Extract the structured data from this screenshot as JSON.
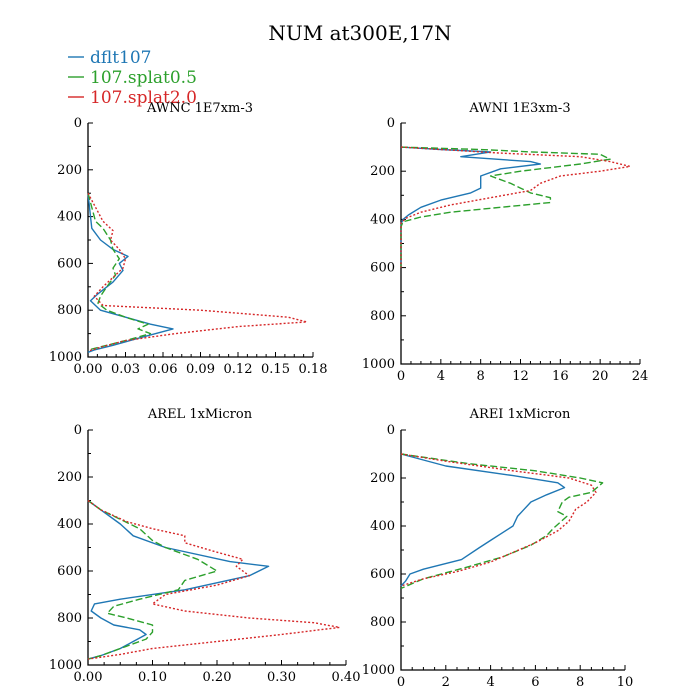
{
  "figure": {
    "title": "NUM at300E,17N"
  },
  "legend": [
    {
      "label": "dflt107",
      "color": "#1f77b4",
      "dash": "solid"
    },
    {
      "label": "107.splat0.5",
      "color": "#2ca02c",
      "dash": "dash"
    },
    {
      "label": "107.splat2.0",
      "color": "#d62728",
      "dash": "dot"
    }
  ],
  "chart_data": [
    {
      "type": "line",
      "title": "AWNC  1E7xm-3",
      "xlim": [
        0,
        0.18
      ],
      "ylim": [
        0,
        1000
      ],
      "y_inverted": true,
      "xticks": [
        "0.00",
        "0.03",
        "0.06",
        "0.09",
        "0.12",
        "0.15",
        "0.18"
      ],
      "xtick_values": [
        0,
        0.03,
        0.06,
        0.09,
        0.12,
        0.15,
        0.18
      ],
      "yticks": [
        "0",
        "200",
        "400",
        "600",
        "800",
        "1000"
      ],
      "ytick_values": [
        0,
        200,
        400,
        600,
        800,
        1000
      ],
      "series": [
        {
          "name": "dflt107",
          "points": [
            [
              0,
              300
            ],
            [
              0.002,
              400
            ],
            [
              0.003,
              450
            ],
            [
              0.01,
              500
            ],
            [
              0.02,
              540
            ],
            [
              0.032,
              570
            ],
            [
              0.025,
              600
            ],
            [
              0.028,
              630
            ],
            [
              0.02,
              680
            ],
            [
              0.008,
              730
            ],
            [
              0.002,
              760
            ],
            [
              0.01,
              800
            ],
            [
              0.03,
              830
            ],
            [
              0.05,
              860
            ],
            [
              0.068,
              880
            ],
            [
              0.04,
              920
            ],
            [
              0.02,
              950
            ],
            [
              0.005,
              970
            ],
            [
              0,
              980
            ]
          ]
        },
        {
          "name": "107.splat0.5",
          "points": [
            [
              0,
              300
            ],
            [
              0.004,
              380
            ],
            [
              0.006,
              420
            ],
            [
              0.012,
              450
            ],
            [
              0.018,
              500
            ],
            [
              0.02,
              540
            ],
            [
              0.025,
              580
            ],
            [
              0.02,
              620
            ],
            [
              0.022,
              650
            ],
            [
              0.015,
              700
            ],
            [
              0.01,
              740
            ],
            [
              0.008,
              770
            ],
            [
              0.015,
              800
            ],
            [
              0.03,
              830
            ],
            [
              0.048,
              860
            ],
            [
              0.04,
              880
            ],
            [
              0.05,
              900
            ],
            [
              0.03,
              930
            ],
            [
              0.015,
              950
            ],
            [
              0,
              970
            ]
          ]
        },
        {
          "name": "107.splat2.0",
          "points": [
            [
              0,
              300
            ],
            [
              0.008,
              380
            ],
            [
              0.012,
              420
            ],
            [
              0.02,
              460
            ],
            [
              0.018,
              500
            ],
            [
              0.025,
              540
            ],
            [
              0.03,
              580
            ],
            [
              0.028,
              620
            ],
            [
              0.02,
              660
            ],
            [
              0.012,
              700
            ],
            [
              0.005,
              740
            ],
            [
              0.012,
              780
            ],
            [
              0.09,
              800
            ],
            [
              0.16,
              830
            ],
            [
              0.175,
              850
            ],
            [
              0.12,
              870
            ],
            [
              0.07,
              900
            ],
            [
              0.03,
              930
            ],
            [
              0.012,
              955
            ],
            [
              0,
              975
            ]
          ]
        }
      ]
    },
    {
      "type": "line",
      "title": "AWNI  1E3xm-3",
      "xlim": [
        0,
        24
      ],
      "ylim": [
        0,
        1000
      ],
      "y_inverted": true,
      "xticks": [
        "0",
        "4",
        "8",
        "12",
        "16",
        "20",
        "24"
      ],
      "xtick_values": [
        0,
        4,
        8,
        12,
        16,
        20,
        24
      ],
      "yticks": [
        "0",
        "200",
        "400",
        "600",
        "800",
        "1000"
      ],
      "ytick_values": [
        0,
        200,
        400,
        600,
        800,
        1000
      ],
      "series": [
        {
          "name": "dflt107",
          "points": [
            [
              0,
              100
            ],
            [
              4,
              110
            ],
            [
              9,
              120
            ],
            [
              6,
              140
            ],
            [
              13,
              160
            ],
            [
              14,
              170
            ],
            [
              10,
              190
            ],
            [
              8,
              220
            ],
            [
              8,
              250
            ],
            [
              8,
              270
            ],
            [
              7,
              290
            ],
            [
              4,
              320
            ],
            [
              2,
              350
            ],
            [
              0.8,
              380
            ],
            [
              0.2,
              400
            ],
            [
              0,
              420
            ],
            [
              0,
              600
            ]
          ]
        },
        {
          "name": "107.splat0.5",
          "points": [
            [
              0,
              100
            ],
            [
              8,
              110
            ],
            [
              13,
              120
            ],
            [
              20,
              130
            ],
            [
              21,
              150
            ],
            [
              18,
              170
            ],
            [
              12,
              200
            ],
            [
              9,
              220
            ],
            [
              11,
              250
            ],
            [
              12,
              270
            ],
            [
              13,
              290
            ],
            [
              15,
              310
            ],
            [
              15,
              330
            ],
            [
              10,
              350
            ],
            [
              5,
              370
            ],
            [
              2,
              390
            ],
            [
              0.2,
              410
            ],
            [
              0,
              430
            ],
            [
              0,
              600
            ]
          ]
        },
        {
          "name": "107.splat2.0",
          "points": [
            [
              0,
              100
            ],
            [
              6,
              115
            ],
            [
              10,
              125
            ],
            [
              18,
              140
            ],
            [
              21,
              160
            ],
            [
              23,
              180
            ],
            [
              20,
              200
            ],
            [
              16,
              220
            ],
            [
              14,
              250
            ],
            [
              13,
              280
            ],
            [
              9,
              310
            ],
            [
              5,
              340
            ],
            [
              2,
              370
            ],
            [
              0.5,
              395
            ],
            [
              0,
              415
            ],
            [
              0,
              600
            ]
          ]
        }
      ]
    },
    {
      "type": "line",
      "title": "AREL  1xMicron",
      "xlim": [
        0,
        0.4
      ],
      "ylim": [
        0,
        1000
      ],
      "y_inverted": true,
      "xticks": [
        "0.00",
        "0.10",
        "0.20",
        "0.30",
        "0.40"
      ],
      "xtick_values": [
        0,
        0.1,
        0.2,
        0.3,
        0.4
      ],
      "yticks": [
        "0",
        "200",
        "400",
        "600",
        "800",
        "1000"
      ],
      "ytick_values": [
        0,
        200,
        400,
        600,
        800,
        1000
      ],
      "series": [
        {
          "name": "dflt107",
          "points": [
            [
              0,
              300
            ],
            [
              0.02,
              340
            ],
            [
              0.05,
              400
            ],
            [
              0.07,
              450
            ],
            [
              0.12,
              500
            ],
            [
              0.22,
              560
            ],
            [
              0.28,
              580
            ],
            [
              0.25,
              620
            ],
            [
              0.15,
              680
            ],
            [
              0.05,
              720
            ],
            [
              0.01,
              740
            ],
            [
              0.005,
              770
            ],
            [
              0.02,
              800
            ],
            [
              0.04,
              830
            ],
            [
              0.08,
              850
            ],
            [
              0.09,
              870
            ],
            [
              0.07,
              900
            ],
            [
              0.05,
              930
            ],
            [
              0.02,
              960
            ],
            [
              0,
              975
            ]
          ]
        },
        {
          "name": "107.splat0.5",
          "points": [
            [
              0,
              300
            ],
            [
              0.02,
              340
            ],
            [
              0.05,
              380
            ],
            [
              0.08,
              420
            ],
            [
              0.1,
              470
            ],
            [
              0.12,
              500
            ],
            [
              0.17,
              550
            ],
            [
              0.2,
              600
            ],
            [
              0.15,
              640
            ],
            [
              0.14,
              680
            ],
            [
              0.08,
              720
            ],
            [
              0.04,
              750
            ],
            [
              0.03,
              780
            ],
            [
              0.06,
              800
            ],
            [
              0.1,
              830
            ],
            [
              0.1,
              860
            ],
            [
              0.09,
              890
            ],
            [
              0.05,
              930
            ],
            [
              0.02,
              960
            ],
            [
              0,
              975
            ]
          ]
        },
        {
          "name": "107.splat2.0",
          "points": [
            [
              0,
              300
            ],
            [
              0.02,
              340
            ],
            [
              0.06,
              390
            ],
            [
              0.1,
              420
            ],
            [
              0.15,
              450
            ],
            [
              0.15,
              480
            ],
            [
              0.2,
              520
            ],
            [
              0.24,
              550
            ],
            [
              0.23,
              580
            ],
            [
              0.25,
              620
            ],
            [
              0.2,
              660
            ],
            [
              0.12,
              700
            ],
            [
              0.1,
              740
            ],
            [
              0.15,
              770
            ],
            [
              0.25,
              800
            ],
            [
              0.35,
              820
            ],
            [
              0.39,
              840
            ],
            [
              0.3,
              870
            ],
            [
              0.2,
              900
            ],
            [
              0.1,
              930
            ],
            [
              0.05,
              955
            ],
            [
              0,
              975
            ]
          ]
        }
      ]
    },
    {
      "type": "line",
      "title": "AREI  1xMicron",
      "xlim": [
        0,
        10
      ],
      "ylim": [
        0,
        1000
      ],
      "y_inverted": true,
      "xticks": [
        "0",
        "2",
        "4",
        "6",
        "8",
        "10"
      ],
      "xtick_values": [
        0,
        2,
        4,
        6,
        8,
        10
      ],
      "yticks": [
        "0",
        "200",
        "400",
        "600",
        "800",
        "1000"
      ],
      "ytick_values": [
        0,
        200,
        400,
        600,
        800,
        1000
      ],
      "series": [
        {
          "name": "dflt107",
          "points": [
            [
              0,
              100
            ],
            [
              2,
              150
            ],
            [
              5,
              190
            ],
            [
              7,
              220
            ],
            [
              7.3,
              240
            ],
            [
              6.5,
              270
            ],
            [
              5.8,
              300
            ],
            [
              5.5,
              330
            ],
            [
              5.2,
              360
            ],
            [
              5,
              400
            ],
            [
              4.5,
              430
            ],
            [
              4,
              460
            ],
            [
              3.5,
              490
            ],
            [
              2.7,
              540
            ],
            [
              1,
              580
            ],
            [
              0.4,
              600
            ],
            [
              0.2,
              630
            ],
            [
              0,
              650
            ]
          ]
        },
        {
          "name": "107.splat0.5",
          "points": [
            [
              0,
              100
            ],
            [
              3,
              140
            ],
            [
              6,
              170
            ],
            [
              8,
              200
            ],
            [
              9,
              220
            ],
            [
              8.5,
              260
            ],
            [
              7.5,
              280
            ],
            [
              7.2,
              300
            ],
            [
              7,
              340
            ],
            [
              7.4,
              360
            ],
            [
              6.8,
              410
            ],
            [
              6.5,
              440
            ],
            [
              5.8,
              480
            ],
            [
              4.5,
              530
            ],
            [
              3,
              570
            ],
            [
              1,
              620
            ],
            [
              0,
              660
            ]
          ]
        },
        {
          "name": "107.splat2.0",
          "points": [
            [
              0,
              100
            ],
            [
              2,
              130
            ],
            [
              5,
              170
            ],
            [
              7.5,
              200
            ],
            [
              8.5,
              230
            ],
            [
              8.7,
              260
            ],
            [
              8.3,
              300
            ],
            [
              7.8,
              330
            ],
            [
              7.5,
              380
            ],
            [
              7,
              420
            ],
            [
              6,
              470
            ],
            [
              5,
              510
            ],
            [
              4,
              550
            ],
            [
              2.5,
              590
            ],
            [
              1,
              620
            ],
            [
              0,
              650
            ]
          ]
        }
      ]
    }
  ]
}
